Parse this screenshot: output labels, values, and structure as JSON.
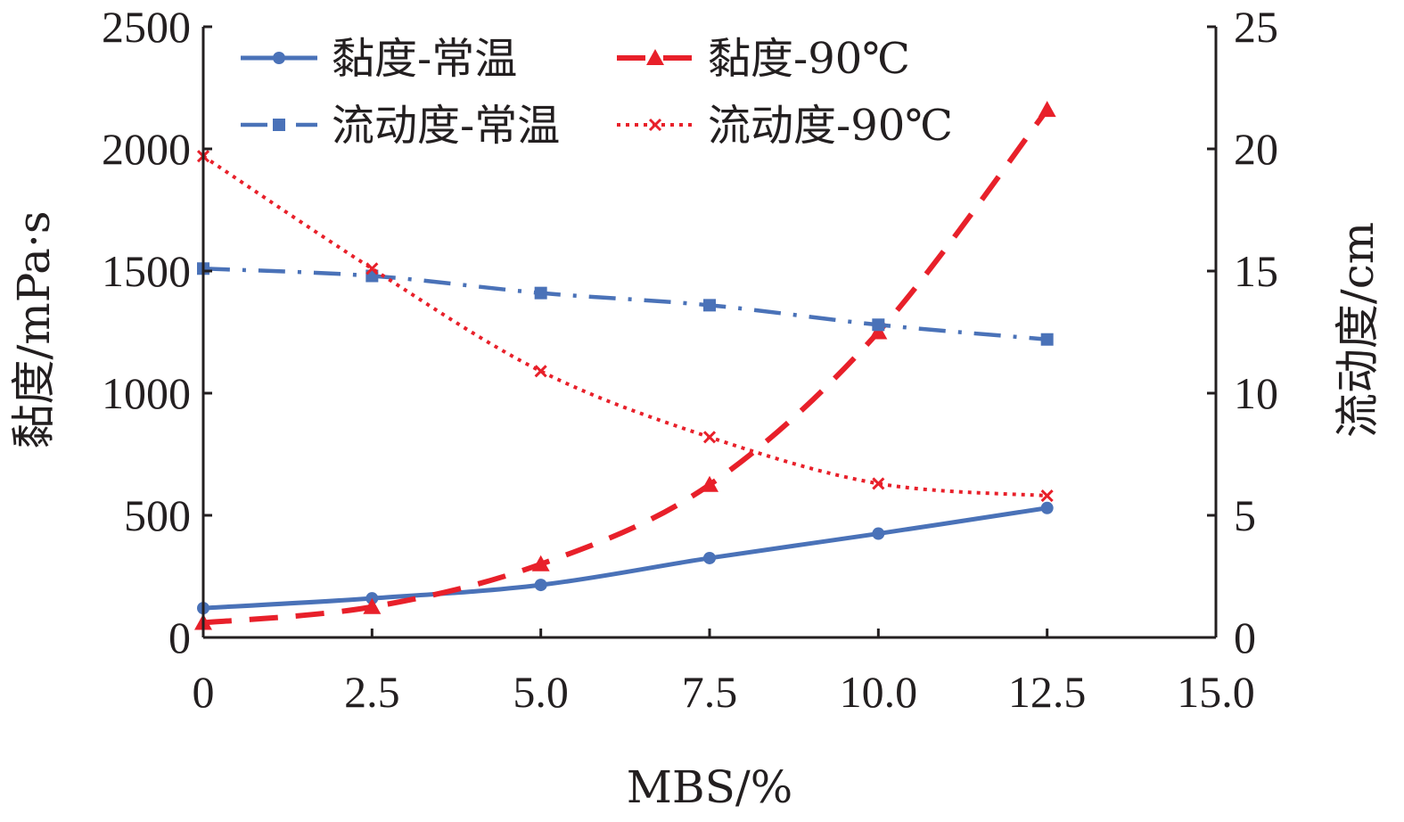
{
  "chart_data": {
    "type": "line",
    "xlabel": "MBS/%",
    "ylabel": "黏度/mPa·s",
    "y2label": "流动度/cm",
    "xlim": [
      0,
      15
    ],
    "ylim": [
      0,
      2500
    ],
    "y2lim": [
      0,
      25
    ],
    "x_ticks": [
      "0",
      "2.5",
      "5.0",
      "7.5",
      "10.0",
      "12.5",
      "15.0"
    ],
    "y_ticks": [
      "0",
      "500",
      "1000",
      "1500",
      "2000",
      "2500"
    ],
    "y2_ticks": [
      "0",
      "5",
      "10",
      "15",
      "20",
      "25"
    ],
    "x": [
      0,
      2.5,
      5.0,
      7.5,
      10.0,
      12.5
    ],
    "legend_position": "top",
    "series": [
      {
        "name": "黏度-常温",
        "axis": "left",
        "color": "#4a72b8",
        "style": "solid",
        "marker": "circle",
        "values": [
          120,
          160,
          215,
          325,
          425,
          530
        ]
      },
      {
        "name": "黏度-90℃",
        "axis": "left",
        "color": "#e8202a",
        "style": "dashed",
        "marker": "triangle",
        "values": [
          60,
          125,
          300,
          625,
          1250,
          2160
        ]
      },
      {
        "name": "流动度-常温",
        "axis": "right",
        "color": "#4a72b8",
        "style": "dashdot",
        "marker": "square",
        "values": [
          15.1,
          14.8,
          14.1,
          13.6,
          12.8,
          12.2
        ]
      },
      {
        "name": "流动度-90℃",
        "axis": "right",
        "color": "#e8202a",
        "style": "dotted",
        "marker": "x",
        "values": [
          19.7,
          15.1,
          10.9,
          8.2,
          6.3,
          5.8
        ]
      }
    ]
  }
}
